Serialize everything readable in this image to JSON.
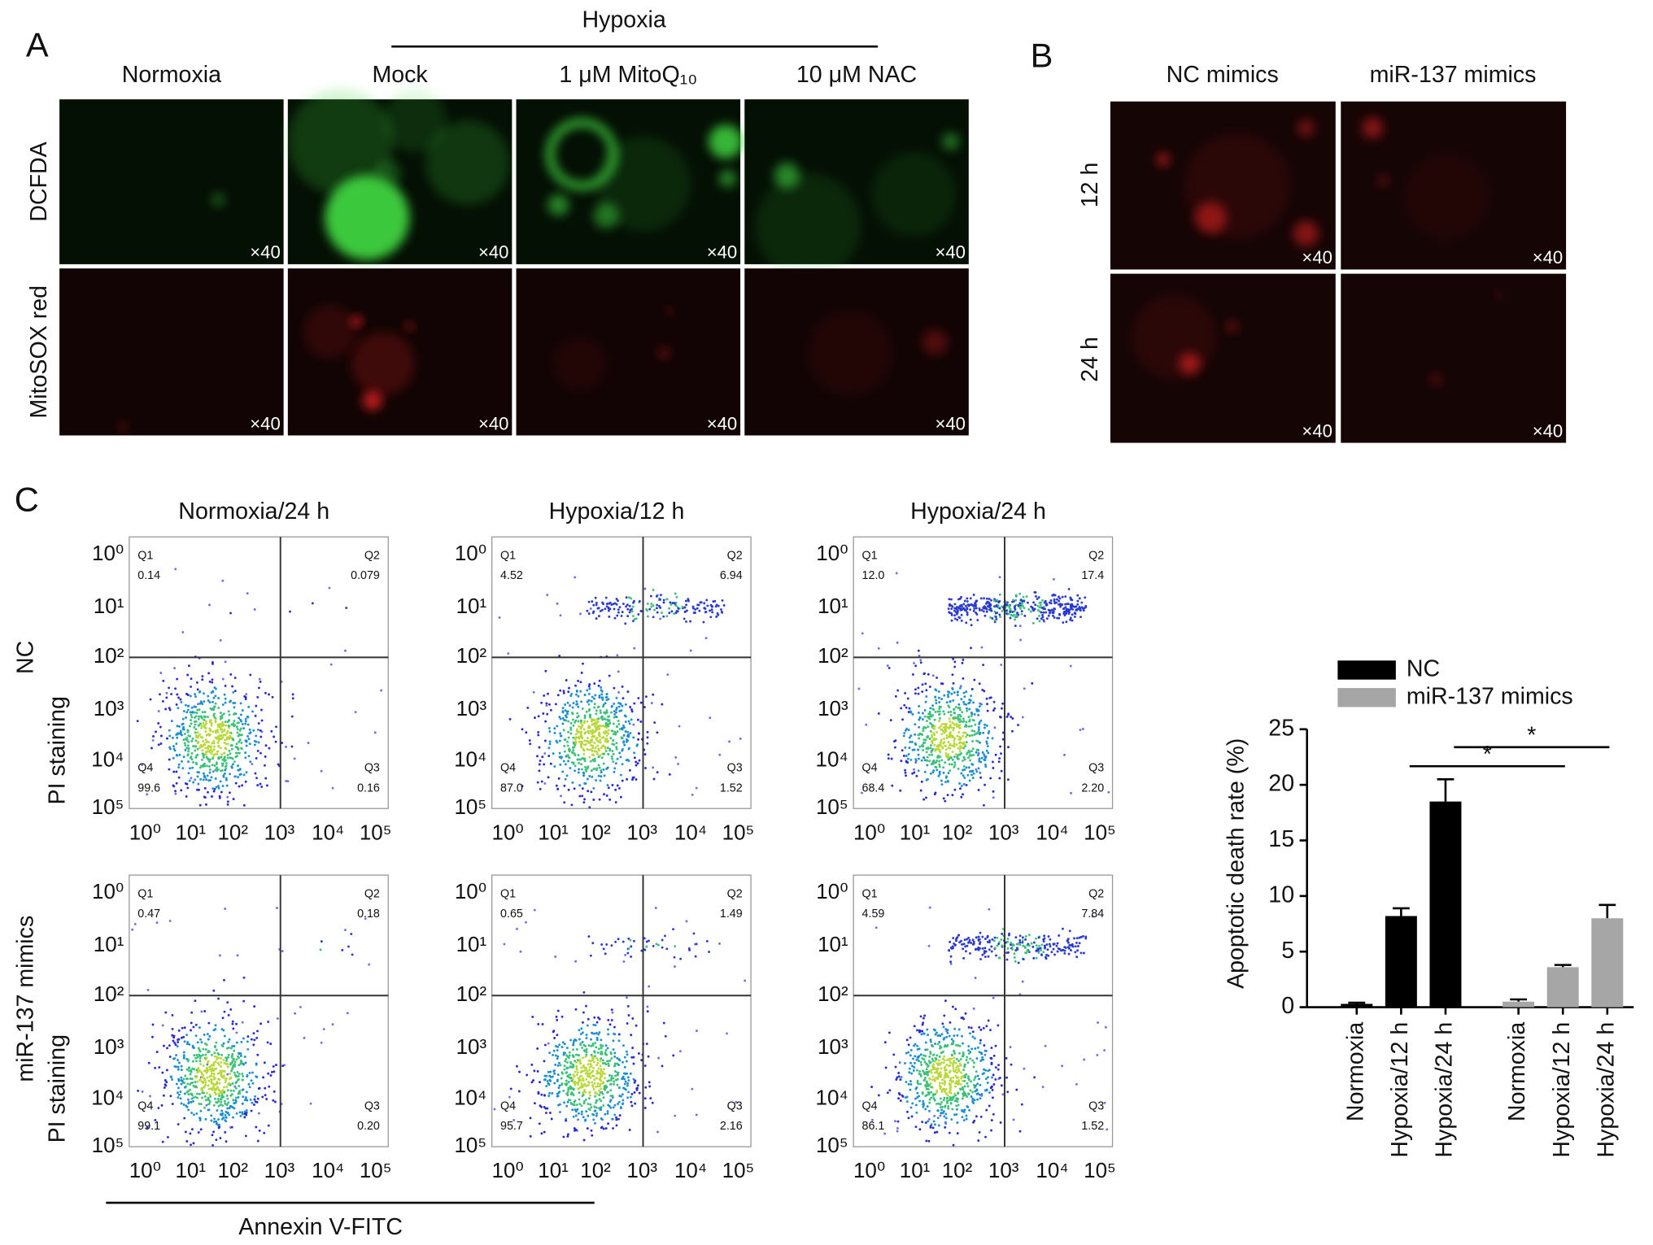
{
  "panel_a": {
    "label": "A",
    "group_label": "Hypoxia",
    "columns": [
      "Normoxia",
      "Mock",
      "1 μM MitoQ₁₀",
      "10 μM NAC"
    ],
    "rows": [
      "DCFDA",
      "MitoSOX red"
    ],
    "magnification": "×40"
  },
  "panel_b": {
    "label": "B",
    "columns": [
      "NC mimics",
      "miR-137 mimics"
    ],
    "rows": [
      "12 h",
      "24 h"
    ],
    "magnification": "×40"
  },
  "panel_c": {
    "label": "C",
    "columns": [
      "Normoxia/24 h",
      "Hypoxia/12 h",
      "Hypoxia/24 h"
    ],
    "rows": [
      {
        "name": "NC",
        "axis": "PI staining"
      },
      {
        "name": "miR-137 mimics",
        "axis": "PI staining"
      }
    ],
    "x_axis": "Annexin V-FITC",
    "log_ticks": [
      "10⁰",
      "10¹",
      "10²",
      "10³",
      "10⁴",
      "10⁵"
    ],
    "quadrant_names": [
      "Q1",
      "Q2",
      "Q3",
      "Q4"
    ],
    "plots": [
      {
        "values": [
          "0.14",
          "0.079",
          "0.16",
          "99.6"
        ]
      },
      {
        "values": [
          "4.52",
          "6.94",
          "1.52",
          "87.0"
        ]
      },
      {
        "values": [
          "12.0",
          "17.4",
          "2.20",
          "68.4"
        ]
      },
      {
        "values": [
          "0.47",
          "0.18",
          "0.20",
          "99.1"
        ]
      },
      {
        "values": [
          "0.65",
          "1.49",
          "2.16",
          "95.7"
        ]
      },
      {
        "values": [
          "4.59",
          "7.84",
          "1.52",
          "86.1"
        ]
      }
    ]
  },
  "chart_data": {
    "type": "bar",
    "y_label": "Apoptotic death rate (%)",
    "categories": [
      "Normoxia",
      "Hypoxia/12 h",
      "Hypoxia/24 h",
      "Normoxia",
      "Hypoxia/12 h",
      "Hypoxia/24 h"
    ],
    "series": [
      {
        "name": "NC",
        "color": "#000000",
        "values": [
          0.3,
          8.2,
          18.5,
          null,
          null,
          null
        ],
        "errors": [
          0.1,
          0.7,
          2.0,
          null,
          null,
          null
        ]
      },
      {
        "name": "miR-137 mimics",
        "color": "#a6a6a6",
        "values": [
          null,
          null,
          null,
          0.5,
          3.6,
          8.0
        ],
        "errors": [
          null,
          null,
          null,
          0.2,
          0.2,
          1.2
        ]
      }
    ],
    "ylim": [
      0,
      25
    ],
    "yticks": [
      0,
      5,
      10,
      15,
      20,
      25
    ],
    "annotations": [
      "*",
      "*"
    ]
  }
}
